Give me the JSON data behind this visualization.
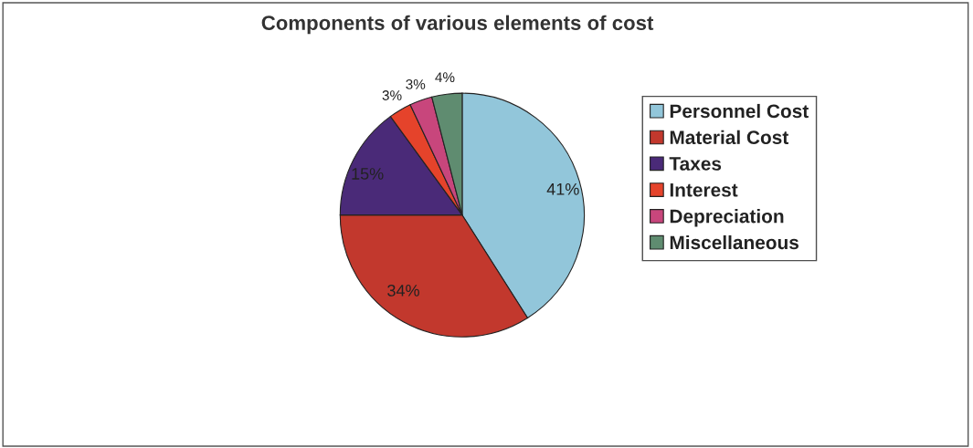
{
  "chart_data": {
    "type": "pie",
    "title": "Components of various elements of cost",
    "categories": [
      "Personnel Cost",
      "Material Cost",
      "Taxes",
      "Interest",
      "Depreciation",
      "Miscellaneous"
    ],
    "values": [
      41,
      34,
      15,
      3,
      3,
      4
    ],
    "colors": [
      "#92c6da",
      "#c2382d",
      "#4a2a78",
      "#e5432b",
      "#c8467c",
      "#5f8c70"
    ],
    "value_labels": [
      "41%",
      "34%",
      "15%",
      "3%",
      "3%",
      "4%"
    ],
    "legend": "right"
  }
}
